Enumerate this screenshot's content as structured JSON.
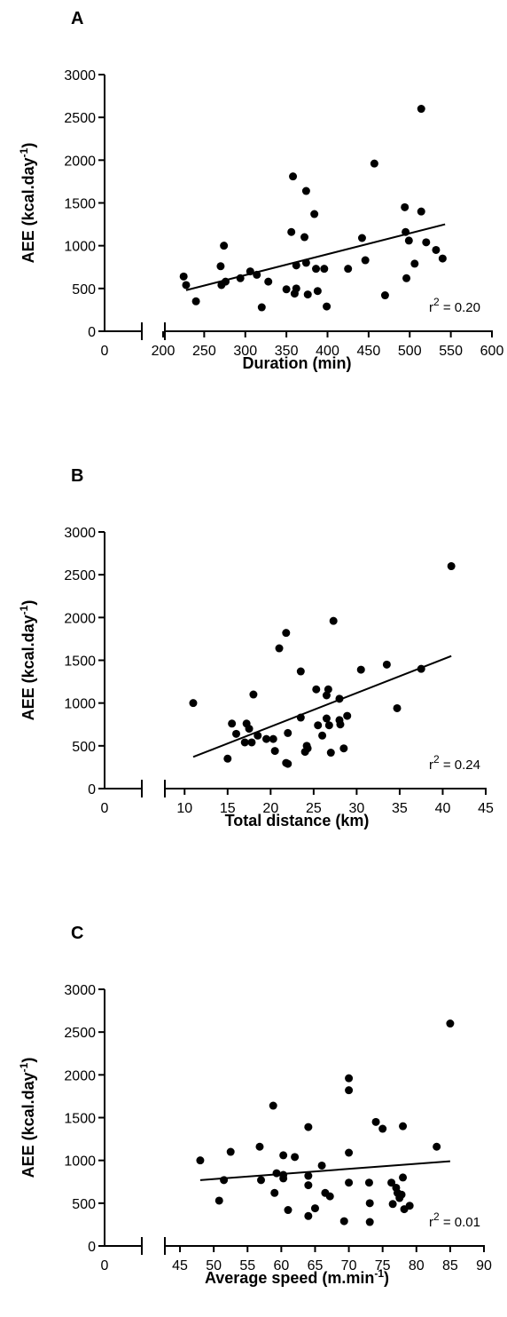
{
  "chart_data": [
    {
      "type": "scatter",
      "panel": "A",
      "ylabel": "AEE (kcal.day",
      "ylabel_sup": "-1",
      "ylabel_suffix": ")",
      "xlabel": "Duration (min)",
      "xlabel_sup": "",
      "xlabel_suffix": "",
      "ylim": [
        0,
        3000
      ],
      "yticks": [
        "0",
        "500",
        "1000",
        "1500",
        "2000",
        "2500",
        "3000"
      ],
      "xlim": [
        200,
        600
      ],
      "xticks": [
        "200",
        "250",
        "300",
        "350",
        "400",
        "450",
        "500",
        "550",
        "600"
      ],
      "origin_tick": "0",
      "annotation": {
        "prefix": "r",
        "sup": "2",
        "text": " = 0.20"
      },
      "fit_line": [
        [
          228,
          480
        ],
        [
          543,
          1250
        ]
      ],
      "points": [
        [
          225,
          640
        ],
        [
          228,
          540
        ],
        [
          240,
          350
        ],
        [
          270,
          760
        ],
        [
          271,
          540
        ],
        [
          274,
          1000
        ],
        [
          276,
          580
        ],
        [
          294,
          620
        ],
        [
          306,
          700
        ],
        [
          314,
          660
        ],
        [
          320,
          280
        ],
        [
          328,
          580
        ],
        [
          350,
          490
        ],
        [
          358,
          1810
        ],
        [
          356,
          1160
        ],
        [
          360,
          440
        ],
        [
          362,
          770
        ],
        [
          362,
          500
        ],
        [
          372,
          1100
        ],
        [
          374,
          1640
        ],
        [
          374,
          800
        ],
        [
          376,
          430
        ],
        [
          384,
          1370
        ],
        [
          386,
          730
        ],
        [
          388,
          470
        ],
        [
          396,
          730
        ],
        [
          399,
          290
        ],
        [
          425,
          730
        ],
        [
          442,
          1090
        ],
        [
          446,
          830
        ],
        [
          457,
          1960
        ],
        [
          470,
          420
        ],
        [
          494,
          1450
        ],
        [
          495,
          1160
        ],
        [
          496,
          620
        ],
        [
          499,
          1060
        ],
        [
          506,
          790
        ],
        [
          514,
          2600
        ],
        [
          514,
          1400
        ],
        [
          520,
          1040
        ],
        [
          532,
          950
        ],
        [
          540,
          850
        ]
      ]
    },
    {
      "type": "scatter",
      "panel": "B",
      "ylabel": "AEE (kcal.day",
      "ylabel_sup": "-1",
      "ylabel_suffix": ")",
      "xlabel": "Total distance (km)",
      "xlabel_sup": "",
      "xlabel_suffix": "",
      "ylim": [
        0,
        3000
      ],
      "yticks": [
        "0",
        "500",
        "1000",
        "1500",
        "2000",
        "2500",
        "3000"
      ],
      "xlim": [
        7.5,
        45
      ],
      "xticks": [
        "10",
        "15",
        "20",
        "25",
        "30",
        "35",
        "40",
        "45"
      ],
      "origin_tick": "0",
      "annotation": {
        "prefix": "r",
        "sup": "2",
        "text": " = 0.24"
      },
      "fit_line": [
        [
          11,
          370
        ],
        [
          41,
          1550
        ]
      ],
      "points": [
        [
          11,
          1000
        ],
        [
          15,
          350
        ],
        [
          15.5,
          760
        ],
        [
          16,
          640
        ],
        [
          17,
          540
        ],
        [
          17.2,
          760
        ],
        [
          17.5,
          700
        ],
        [
          17.8,
          540
        ],
        [
          18,
          1100
        ],
        [
          18.5,
          620
        ],
        [
          19.5,
          580
        ],
        [
          20.3,
          580
        ],
        [
          20.5,
          440
        ],
        [
          21,
          1640
        ],
        [
          21.8,
          1820
        ],
        [
          21.8,
          300
        ],
        [
          22,
          290
        ],
        [
          22,
          650
        ],
        [
          23.5,
          830
        ],
        [
          23.5,
          1370
        ],
        [
          24,
          430
        ],
        [
          24.2,
          500
        ],
        [
          24.3,
          470
        ],
        [
          25.3,
          1160
        ],
        [
          25.5,
          740
        ],
        [
          26,
          620
        ],
        [
          26.5,
          1090
        ],
        [
          26.5,
          820
        ],
        [
          26.7,
          1160
        ],
        [
          26.8,
          740
        ],
        [
          27,
          420
        ],
        [
          27.3,
          1960
        ],
        [
          28,
          1050
        ],
        [
          28,
          800
        ],
        [
          28.1,
          750
        ],
        [
          28.5,
          470
        ],
        [
          28.9,
          850
        ],
        [
          30.5,
          1390
        ],
        [
          33.5,
          1450
        ],
        [
          34.7,
          940
        ],
        [
          37.5,
          1400
        ],
        [
          41,
          2600
        ]
      ]
    },
    {
      "type": "scatter",
      "panel": "C",
      "ylabel": "AEE (kcal.day",
      "ylabel_sup": "-1",
      "ylabel_suffix": ")",
      "xlabel": "Average speed (m.min",
      "xlabel_sup": "-1",
      "xlabel_suffix": ")",
      "ylim": [
        0,
        3000
      ],
      "yticks": [
        "0",
        "500",
        "1000",
        "1500",
        "2000",
        "2500",
        "3000"
      ],
      "xlim": [
        42.5,
        90
      ],
      "xticks": [
        "45",
        "50",
        "55",
        "60",
        "65",
        "70",
        "75",
        "80",
        "85",
        "90"
      ],
      "origin_tick": "0",
      "annotation": {
        "prefix": "r",
        "sup": "2",
        "text": " = 0.01"
      },
      "fit_line": [
        [
          48,
          770
        ],
        [
          85,
          990
        ]
      ],
      "points": [
        [
          48,
          1000
        ],
        [
          50.8,
          530
        ],
        [
          51.5,
          770
        ],
        [
          52.5,
          1100
        ],
        [
          56.8,
          1160
        ],
        [
          57,
          770
        ],
        [
          58.8,
          1640
        ],
        [
          59,
          620
        ],
        [
          59.3,
          850
        ],
        [
          60.3,
          830
        ],
        [
          60.3,
          1060
        ],
        [
          60.3,
          790
        ],
        [
          61,
          420
        ],
        [
          62,
          1040
        ],
        [
          64,
          1390
        ],
        [
          64,
          820
        ],
        [
          64,
          710
        ],
        [
          64,
          350
        ],
        [
          65,
          440
        ],
        [
          66,
          940
        ],
        [
          66.5,
          620
        ],
        [
          67.2,
          580
        ],
        [
          69.3,
          290
        ],
        [
          70,
          1960
        ],
        [
          70,
          1820
        ],
        [
          70,
          1090
        ],
        [
          70,
          740
        ],
        [
          73,
          740
        ],
        [
          73.1,
          500
        ],
        [
          73.1,
          280
        ],
        [
          74,
          1450
        ],
        [
          75,
          1370
        ],
        [
          76.3,
          740
        ],
        [
          76.5,
          490
        ],
        [
          77,
          680
        ],
        [
          77.2,
          620
        ],
        [
          77.5,
          560
        ],
        [
          77.8,
          600
        ],
        [
          78,
          1400
        ],
        [
          78,
          800
        ],
        [
          78.2,
          430
        ],
        [
          79,
          470
        ],
        [
          83,
          1160
        ],
        [
          85,
          2600
        ]
      ]
    }
  ]
}
